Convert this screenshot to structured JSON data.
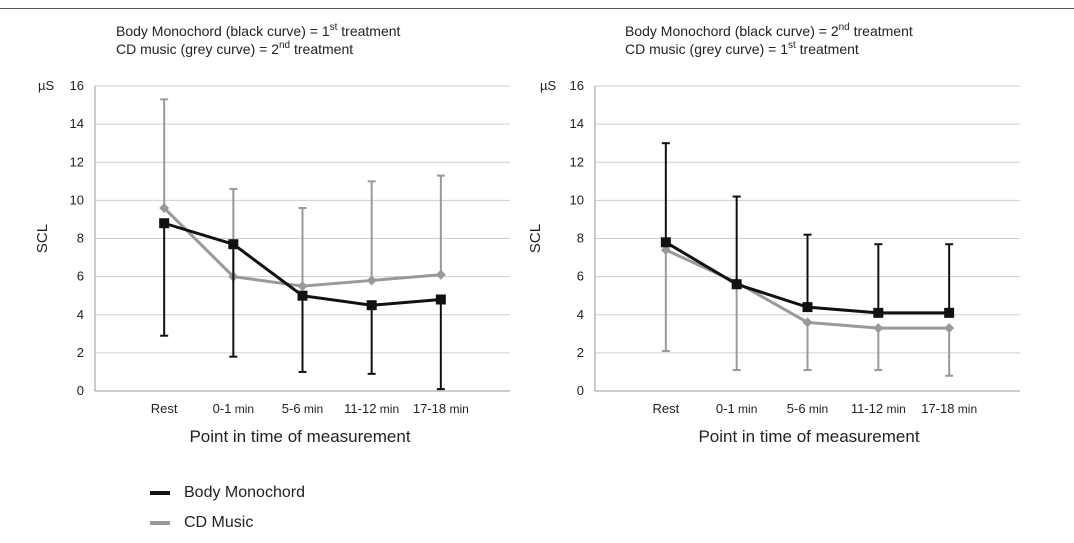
{
  "chart_data": [
    {
      "type": "line",
      "title_lines": [
        {
          "text": "Body Monochord (black curve) = 1",
          "sup": "st",
          "tail": "  treatment"
        },
        {
          "text": "CD music (grey curve) = 2",
          "sup": "nd",
          "tail": " treatment"
        }
      ],
      "unit_label": "µS",
      "ylabel": "SCL",
      "xlabel": "Point in time of measurement",
      "categories": [
        {
          "label": "Rest",
          "unit": ""
        },
        {
          "label": "0-1",
          "unit": "min"
        },
        {
          "label": "5-6",
          "unit": "min"
        },
        {
          "label": "11-12",
          "unit": "min"
        },
        {
          "label": "17-18",
          "unit": "min"
        }
      ],
      "ylim": [
        0,
        16
      ],
      "yticks": [
        0,
        2,
        4,
        6,
        8,
        10,
        12,
        14,
        16
      ],
      "grid": true,
      "series": [
        {
          "name": "CD Music",
          "color": "#999999",
          "marker": "diamond",
          "values": [
            9.6,
            6.0,
            5.5,
            5.8,
            6.1
          ],
          "err_low": [
            null,
            null,
            null,
            null,
            null
          ],
          "err_high": [
            15.3,
            10.6,
            9.6,
            11.0,
            11.3
          ]
        },
        {
          "name": "Body Monochord",
          "color": "#111111",
          "marker": "square",
          "values": [
            8.8,
            7.7,
            5.0,
            4.5,
            4.8
          ],
          "err_low": [
            2.9,
            1.8,
            1.0,
            0.9,
            0.1
          ],
          "err_high": [
            null,
            null,
            null,
            null,
            null
          ]
        }
      ]
    },
    {
      "type": "line",
      "title_lines": [
        {
          "text": "Body Monochord (black curve) = 2",
          "sup": "nd",
          "tail": " treatment"
        },
        {
          "text": "CD music (grey curve) = 1",
          "sup": "st",
          "tail": " treatment"
        }
      ],
      "unit_label": "µS",
      "ylabel": "SCL",
      "xlabel": "Point in time of measurement",
      "categories": [
        {
          "label": "Rest",
          "unit": ""
        },
        {
          "label": "0-1",
          "unit": "min"
        },
        {
          "label": "5-6",
          "unit": "min"
        },
        {
          "label": "11-12",
          "unit": "min"
        },
        {
          "label": "17-18",
          "unit": "min"
        }
      ],
      "ylim": [
        0,
        16
      ],
      "yticks": [
        0,
        2,
        4,
        6,
        8,
        10,
        12,
        14,
        16
      ],
      "grid": true,
      "series": [
        {
          "name": "CD Music",
          "color": "#999999",
          "marker": "diamond",
          "values": [
            7.4,
            5.7,
            3.6,
            3.3,
            3.3
          ],
          "err_low": [
            2.1,
            1.1,
            1.1,
            1.1,
            0.8
          ],
          "err_high": [
            null,
            null,
            null,
            null,
            null
          ]
        },
        {
          "name": "Body Monochord",
          "color": "#111111",
          "marker": "square",
          "values": [
            7.8,
            5.6,
            4.4,
            4.1,
            4.1
          ],
          "err_low": [
            null,
            null,
            null,
            null,
            null
          ],
          "err_high": [
            13.0,
            10.2,
            8.2,
            7.7,
            7.7
          ]
        }
      ]
    }
  ],
  "legend": {
    "items": [
      {
        "label": "Body Monochord",
        "color": "#111111"
      },
      {
        "label": "CD Music",
        "color": "#999999"
      }
    ]
  }
}
